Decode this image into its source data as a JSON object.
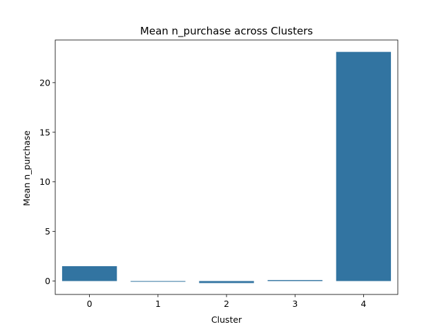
{
  "chart_data": {
    "type": "bar",
    "title": "Mean n_purchase across Clusters",
    "xlabel": "Cluster",
    "ylabel": "Mean n_purchase",
    "categories": [
      "0",
      "1",
      "2",
      "3",
      "4"
    ],
    "values": [
      1.5,
      -0.05,
      -0.2,
      0.1,
      23.1
    ],
    "ylim": [
      -1.35,
      24.3
    ],
    "yticks": [
      "0",
      "5",
      "10",
      "15",
      "20"
    ],
    "grid": false,
    "colors": {
      "bar": "#3274a1"
    }
  }
}
